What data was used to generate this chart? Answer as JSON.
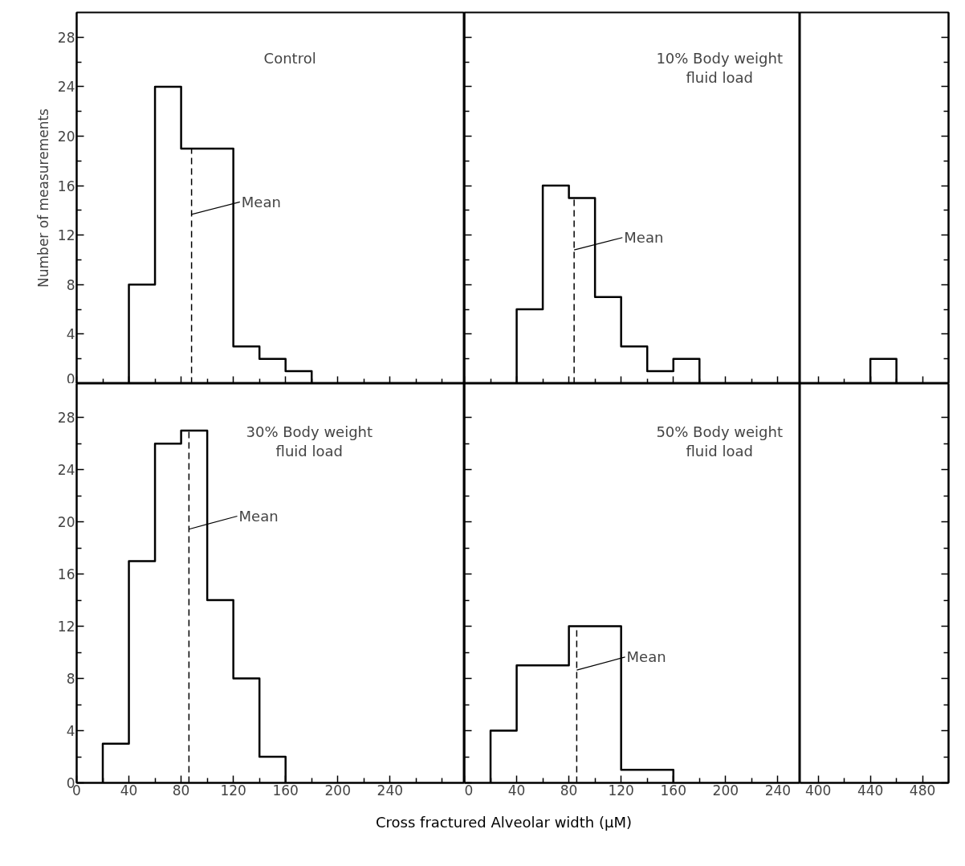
{
  "chart_data": [
    {
      "type": "histogram",
      "title": "Control",
      "ylabel": "Number of measurements",
      "bins": [
        40,
        60,
        80,
        100,
        120,
        140,
        160,
        180
      ],
      "values": [
        8,
        24,
        19,
        19,
        3,
        2,
        1
      ],
      "color": "#000000",
      "xlim": [
        0,
        297
      ],
      "xticks": [
        0,
        {
          "value": 20,
          "label": null
        },
        40,
        {
          "value": 60,
          "label": null
        },
        80,
        {
          "value": 100,
          "label": null
        },
        120,
        {
          "value": 140,
          "label": null
        },
        160,
        {
          "value": 180,
          "label": null
        },
        200,
        {
          "value": 220,
          "label": null
        },
        240,
        {
          "value": 260,
          "label": null
        },
        {
          "value": 280,
          "label": null
        }
      ],
      "ylim": [
        0,
        30
      ],
      "yticks": [
        0,
        {
          "value": 2,
          "label": null
        },
        4,
        {
          "value": 6,
          "label": null
        },
        8,
        {
          "value": 10,
          "label": null
        },
        12,
        {
          "value": 14,
          "label": null
        },
        16,
        {
          "value": 18,
          "label": null
        },
        20,
        {
          "value": 22,
          "label": null
        },
        24,
        {
          "value": 26,
          "label": null
        },
        28
      ],
      "ref_lines": [
        {
          "axis": "x",
          "value": 88,
          "label": "Mean",
          "line_style": "dashed"
        }
      ],
      "tick_labels": "y",
      "grid": false
    },
    {
      "type": "histogram",
      "title": "10% Body weight fluid load",
      "bins": [
        40,
        60,
        80,
        100,
        120,
        140,
        160,
        180
      ],
      "values": [
        6,
        16,
        15,
        7,
        3,
        1,
        2
      ],
      "color": "#000000",
      "xlim": [
        0,
        257
      ],
      "xticks": [
        0,
        {
          "value": 20,
          "label": null
        },
        40,
        {
          "value": 60,
          "label": null
        },
        80,
        {
          "value": 100,
          "label": null
        },
        120,
        {
          "value": 140,
          "label": null
        },
        160,
        {
          "value": 180,
          "label": null
        },
        200,
        {
          "value": 220,
          "label": null
        },
        240
      ],
      "ylim": [
        0,
        30
      ],
      "yticks": [
        0,
        {
          "value": 2,
          "label": null
        },
        4,
        {
          "value": 6,
          "label": null
        },
        8,
        {
          "value": 10,
          "label": null
        },
        12,
        {
          "value": 14,
          "label": null
        },
        16,
        {
          "value": 18,
          "label": null
        },
        20,
        {
          "value": 22,
          "label": null
        },
        24,
        {
          "value": 26,
          "label": null
        },
        28
      ],
      "ref_lines": [
        {
          "axis": "x",
          "value": 84,
          "label": "Mean",
          "line_style": "dashed"
        }
      ],
      "tick_labels": false,
      "grid": false
    },
    {
      "type": "histogram",
      "bins": [
        440,
        460
      ],
      "values": [
        2
      ],
      "color": "#000000",
      "xlim": [
        386,
        500
      ],
      "xticks": [
        400,
        {
          "value": 420,
          "label": null
        },
        440,
        {
          "value": 460,
          "label": null
        },
        480
      ],
      "ylim": [
        0,
        30
      ],
      "yticks": [
        0,
        {
          "value": 2,
          "label": null
        },
        4,
        {
          "value": 6,
          "label": null
        },
        8,
        {
          "value": 10,
          "label": null
        },
        12,
        {
          "value": 14,
          "label": null
        },
        16,
        {
          "value": 18,
          "label": null
        },
        20,
        {
          "value": 22,
          "label": null
        },
        24,
        {
          "value": 26,
          "label": null
        },
        28
      ],
      "tick_labels": false,
      "grid": false
    },
    {
      "type": "histogram",
      "title": "30% Body weight fluid load",
      "xlabel": "Cross fractured Alveolar width (μM)",
      "bins": [
        20,
        40,
        60,
        80,
        100,
        120,
        140,
        160
      ],
      "values": [
        3,
        17,
        26,
        27,
        14,
        8,
        2
      ],
      "color": "#000000",
      "xlim": [
        0,
        297
      ],
      "xticks": [
        0,
        {
          "value": 20,
          "label": null
        },
        40,
        {
          "value": 60,
          "label": null
        },
        80,
        {
          "value": 100,
          "label": null
        },
        120,
        {
          "value": 140,
          "label": null
        },
        160,
        {
          "value": 180,
          "label": null
        },
        200,
        {
          "value": 220,
          "label": null
        },
        240,
        {
          "value": 260,
          "label": null
        },
        {
          "value": 280,
          "label": null
        }
      ],
      "ylim": [
        0,
        30.6
      ],
      "yticks": [
        0,
        {
          "value": 2,
          "label": null
        },
        4,
        {
          "value": 6,
          "label": null
        },
        8,
        {
          "value": 10,
          "label": null
        },
        12,
        {
          "value": 14,
          "label": null
        },
        16,
        {
          "value": 18,
          "label": null
        },
        20,
        {
          "value": 22,
          "label": null
        },
        24,
        {
          "value": 26,
          "label": null
        },
        28
      ],
      "ref_lines": [
        {
          "axis": "x",
          "value": 86,
          "label": "Mean",
          "line_style": "dashed"
        }
      ],
      "grid": false
    },
    {
      "type": "histogram",
      "title": "50% Body weight fluid load",
      "bins": [
        20,
        40,
        60,
        80,
        100,
        120,
        140,
        160
      ],
      "values": [
        4,
        9,
        9,
        12,
        12,
        1,
        1
      ],
      "color": "#000000",
      "xlim": [
        0,
        257
      ],
      "xticks": [
        0,
        {
          "value": 20,
          "label": null
        },
        40,
        {
          "value": 60,
          "label": null
        },
        80,
        {
          "value": 100,
          "label": null
        },
        120,
        {
          "value": 140,
          "label": null
        },
        160,
        {
          "value": 180,
          "label": null
        },
        200,
        {
          "value": 220,
          "label": null
        },
        240
      ],
      "ylim": [
        0,
        30.6
      ],
      "yticks": [
        0,
        {
          "value": 2,
          "label": null
        },
        4,
        {
          "value": 6,
          "label": null
        },
        8,
        {
          "value": 10,
          "label": null
        },
        12,
        {
          "value": 14,
          "label": null
        },
        16,
        {
          "value": 18,
          "label": null
        },
        20,
        {
          "value": 22,
          "label": null
        },
        24,
        {
          "value": 26,
          "label": null
        },
        28
      ],
      "ref_lines": [
        {
          "axis": "x",
          "value": 86,
          "label": "Mean",
          "line_style": "dashed"
        }
      ],
      "tick_labels": "x",
      "grid": false
    },
    {
      "type": "histogram",
      "color": "#000000",
      "xlim": [
        386,
        500
      ],
      "xticks": [
        400,
        {
          "value": 420,
          "label": null
        },
        440,
        {
          "value": 460,
          "label": null
        },
        480
      ],
      "ylim": [
        0,
        30.6
      ],
      "yticks": [
        0,
        {
          "value": 2,
          "label": null
        },
        4,
        {
          "value": 6,
          "label": null
        },
        8,
        {
          "value": 10,
          "label": null
        },
        12,
        {
          "value": 14,
          "label": null
        },
        16,
        {
          "value": 18,
          "label": null
        },
        20,
        {
          "value": 22,
          "label": null
        },
        24,
        {
          "value": 26,
          "label": null
        },
        28
      ],
      "tick_labels": "x",
      "grid": false
    }
  ]
}
